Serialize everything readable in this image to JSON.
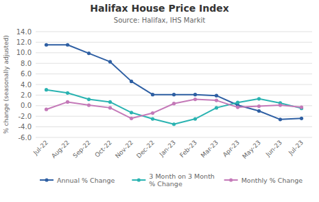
{
  "chart_data": {
    "type": "line",
    "title": "Halifax House Price Index",
    "subtitle": "Source: Halifax, IHS Markit",
    "y_label": "% change (seasonally adjusted)",
    "categories": [
      "Jul-22",
      "Aug-22",
      "Sep-22",
      "Oct-22",
      "Nov-22",
      "Dec-22",
      "Jan-23",
      "Feb-23",
      "Mar-23",
      "Apr-23",
      "May-23",
      "Jun-23",
      "Jul-23"
    ],
    "series": [
      {
        "name": "Annual % Change",
        "color": "#2e5fa3",
        "values": [
          11.5,
          11.5,
          9.9,
          8.3,
          4.6,
          2.1,
          2.1,
          2.1,
          1.9,
          0.1,
          -1.0,
          -2.6,
          -2.4
        ]
      },
      {
        "name": "3 Month on 3 Month\n% Change",
        "color": "#2ab3b1",
        "values": [
          3.0,
          2.4,
          1.2,
          0.7,
          -1.3,
          -2.5,
          -3.5,
          -2.5,
          -0.4,
          0.6,
          1.3,
          0.5,
          -0.5
        ]
      },
      {
        "name": "Monthly % Change",
        "color": "#c479b8",
        "values": [
          -0.7,
          0.7,
          0.1,
          -0.4,
          -2.4,
          -1.4,
          0.4,
          1.2,
          1.0,
          -0.3,
          -0.1,
          0.1,
          -0.3
        ]
      }
    ],
    "ylim": [
      -6.0,
      14.0
    ],
    "yticks": [
      {
        "value": -6.0,
        "label": "-6.0"
      },
      {
        "value": -4.0,
        "label": "-4.0"
      },
      {
        "value": -2.0,
        "label": "-2.0"
      },
      {
        "value": 0.0,
        "label": "0.0"
      },
      {
        "value": 2.0,
        "label": "2.0"
      },
      {
        "value": 4.0,
        "label": "4.0"
      },
      {
        "value": 6.0,
        "label": "6.0"
      },
      {
        "value": 8.0,
        "label": "8.0"
      },
      {
        "value": 10.0,
        "label": "10.0"
      },
      {
        "value": 12.0,
        "label": "12.0"
      },
      {
        "value": 14.0,
        "label": "14.0"
      }
    ],
    "grid": true,
    "legend": "bottom",
    "marker": "circle"
  }
}
